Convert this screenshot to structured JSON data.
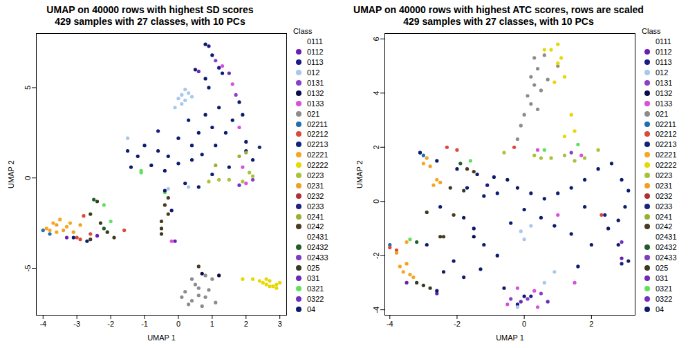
{
  "chart_data": [
    {
      "type": "scatter",
      "title": "UMAP on 40000 rows with highest SD scores",
      "subtitle": "429 samples with 27 classes, with 10 PCs",
      "x_label": "UMAP 1",
      "y_label": "UMAP 2",
      "xlim": [
        -4.2,
        3.2
      ],
      "xticks": [
        -4,
        -3,
        -2,
        -1,
        0,
        1,
        2,
        3
      ],
      "ylim": [
        -7.6,
        8
      ],
      "yticks": [
        -5,
        0,
        5
      ],
      "legend": "right",
      "legend_title": "Class",
      "series": [
        {
          "name": "0111",
          "color": "#ffffff",
          "x": [],
          "y": []
        },
        {
          "name": "0112",
          "color": "#6a1fb0",
          "x": [
            -3.3,
            -2.4,
            -0.1
          ],
          "y": [
            -3.3,
            -3.2,
            -3.5
          ]
        },
        {
          "name": "0113",
          "color": "#1a1a8c",
          "x": [
            0.9,
            1.2,
            2,
            -0.6
          ],
          "y": [
            7.3,
            6.1,
            1.5,
            2.6
          ]
        },
        {
          "name": "012",
          "color": "#a6c8ec",
          "x": [
            0,
            0.1,
            0.2,
            0.3,
            0.1,
            0.4,
            0.2,
            -0.1,
            -1.5,
            -0.3,
            0.3
          ],
          "y": [
            4.4,
            4.6,
            4.3,
            4.7,
            4.1,
            4.5,
            4.9,
            3.9,
            2.2,
            -0.6,
            -0.5
          ]
        },
        {
          "name": "0131",
          "color": "#8a3fc8",
          "x": [
            1.1,
            1.7,
            2.2
          ],
          "y": [
            6.5,
            4.6,
            -0.1
          ]
        },
        {
          "name": "0132",
          "color": "#0b0b4a",
          "x": [
            0.7,
            1.2
          ],
          "y": [
            -5.3,
            -5.4
          ]
        },
        {
          "name": "0133",
          "color": "#d94fd9",
          "x": [
            1.3,
            1.6,
            1.9,
            2,
            -0.2,
            1.8
          ],
          "y": [
            6.2,
            5.2,
            0.6,
            -0.3,
            -3.5,
            2.8
          ]
        },
        {
          "name": "021",
          "color": "#8c8c8c",
          "x": [
            0.2,
            0.4,
            0.6,
            0.8,
            0.3,
            0.5,
            0.7,
            0.9,
            0.1,
            0.6,
            1,
            0.8,
            0.4,
            1.1
          ],
          "y": [
            -6.3,
            -6.8,
            -6.1,
            -6.6,
            -7,
            -5.9,
            -7.1,
            -6.2,
            -6.6,
            -6.5,
            -5.6,
            -5.4,
            -5.6,
            -6.9
          ]
        },
        {
          "name": "02211",
          "color": "#1f6fb0",
          "x": [
            -4,
            -3.8
          ],
          "y": [
            -2.9,
            -3.1
          ]
        },
        {
          "name": "02212",
          "color": "#d94a3a",
          "x": [
            -3,
            -2.9,
            -2.6,
            -1.6,
            -2.8
          ],
          "y": [
            -3.3,
            -3.4,
            -3.1,
            -2.9,
            -2.1
          ]
        },
        {
          "name": "02213",
          "color": "#12237a",
          "x": [],
          "y": []
        },
        {
          "name": "02221",
          "color": "#f5a623",
          "x": [
            -3.9,
            -3.7,
            -3.5,
            -3.3,
            -3.6,
            -3.8,
            -3.2
          ],
          "y": [
            -2.8,
            -2.5,
            -2.3,
            -2.7,
            -3,
            -2.9,
            -2.5
          ]
        },
        {
          "name": "02222",
          "color": "#e6d800",
          "x": [
            2.5,
            2.6,
            2.7,
            2.8,
            2.9,
            3,
            2.7,
            2.4,
            2.9,
            2.2,
            1.9,
            2.6
          ],
          "y": [
            -5.8,
            -5.9,
            -5.7,
            -6,
            -5.9,
            -5.8,
            -6,
            -5.7,
            -6.1,
            -5.6,
            -5.6,
            -5.6
          ]
        },
        {
          "name": "0223",
          "color": "#a8c23a",
          "x": [
            1.5,
            1.9,
            2.1,
            0.9,
            1.2,
            2.2
          ],
          "y": [
            -0.1,
            -0.2,
            0.3,
            -0.2,
            -0.1,
            0.1
          ]
        },
        {
          "name": "0231",
          "color": "#f0a020",
          "x": [
            -3.4,
            -3.1,
            -2.9,
            -3.6
          ],
          "y": [
            -2.9,
            -3,
            -2.6,
            -2.6
          ]
        },
        {
          "name": "0232",
          "color": "#b03030",
          "x": [],
          "y": []
        },
        {
          "name": "0233",
          "color": "#1a237e",
          "x": [
            2.4
          ],
          "y": [
            1.7
          ]
        },
        {
          "name": "0241",
          "color": "#9ab030",
          "x": [
            1.8,
            2,
            1.1
          ],
          "y": [
            1.2,
            1.4,
            0.7
          ]
        },
        {
          "name": "0242",
          "color": "#4a3a20",
          "x": [
            -0.4,
            -0.3,
            -0.5,
            -2.6,
            0.6,
            -0.3
          ],
          "y": [
            -1.5,
            -2,
            -2.4,
            -3.4,
            -4.9,
            -1.1
          ]
        },
        {
          "name": "02431",
          "color": "#ffffff",
          "x": [],
          "y": []
        },
        {
          "name": "02432",
          "color": "#1f5f2a",
          "x": [
            -2.2,
            -2.5
          ],
          "y": [
            -2.8,
            -1.2
          ]
        },
        {
          "name": "02433",
          "color": "#7a3cc0",
          "x": [],
          "y": []
        },
        {
          "name": "025",
          "color": "#3a3a20",
          "x": [
            -2.3,
            -2.1,
            -1.9,
            -2.4,
            -0.5,
            -0.5,
            -2.6
          ],
          "y": [
            -2.5,
            -3,
            -3.3,
            -1.3,
            -2.8,
            -3.1,
            -2
          ]
        },
        {
          "name": "031",
          "color": "#6b2bb5",
          "x": [
            1.5,
            0.6
          ],
          "y": [
            5.8,
            5.9
          ]
        },
        {
          "name": "0321",
          "color": "#5fe05f",
          "x": [
            -1.1,
            -1.1,
            -0.4,
            -2,
            -2.2
          ],
          "y": [
            0.4,
            0.3,
            -0.8,
            -2.4,
            -1.5
          ]
        },
        {
          "name": "0322",
          "color": "#7030c0",
          "x": [
            1.8
          ],
          "y": [
            -0.4
          ]
        },
        {
          "name": "04",
          "color": "#0d1b6e",
          "x": [
            0.5,
            0.8,
            1,
            1.3,
            0.9,
            0.3,
            0.6,
            0.8,
            1,
            1.2,
            0.4,
            0,
            -0.3,
            -0.6,
            -1,
            -1.2,
            -1.5,
            -1.4,
            -0.8,
            -0.4,
            0,
            0.4,
            0.7,
            1.1,
            1.4,
            1.6,
            1.8,
            2,
            1.5,
            1,
            0.6,
            0.2,
            -0.4,
            -0.2,
            2.2,
            1.9,
            0.8,
            -2.7,
            -3.1
          ],
          "y": [
            6,
            5.5,
            6.8,
            5.8,
            5,
            3.2,
            2.5,
            3.5,
            2.8,
            3.9,
            1.8,
            2.2,
            1.2,
            1.5,
            1.8,
            1.2,
            1.5,
            0.6,
            0.7,
            0.4,
            0.8,
            1,
            1.3,
            1.8,
            2.5,
            3.2,
            4.2,
            2,
            0.6,
            0.2,
            -0.5,
            -0.3,
            -0.7,
            -1.8,
            1,
            3.5,
            7.4,
            -3.5,
            -3.3
          ]
        }
      ]
    },
    {
      "type": "scatter",
      "title": "UMAP on 40000 rows with highest ATC scores, rows are scaled",
      "subtitle": "429 samples with 27 classes, with 10 PCs",
      "x_label": "UMAP 1",
      "y_label": "UMAP 2",
      "xlim": [
        -4.15,
        3.3
      ],
      "xticks": [
        -4,
        -2,
        0,
        2
      ],
      "ylim": [
        -4.2,
        6.2
      ],
      "yticks": [
        -4,
        -2,
        0,
        2,
        4,
        6
      ],
      "legend": "right",
      "legend_title": "Class",
      "series": [
        {
          "name": "0111",
          "color": "#ffffff",
          "x": [],
          "y": []
        },
        {
          "name": "0112",
          "color": "#6a1fb0",
          "x": [
            -3.5,
            -2.6,
            2.9
          ],
          "y": [
            -3,
            -3.4,
            -2.1
          ]
        },
        {
          "name": "0113",
          "color": "#1a1a8c",
          "x": [
            -0.2,
            0.2,
            -1.1,
            2.4
          ],
          "y": [
            -3.8,
            -3.5,
            0.6,
            -0.5
          ]
        },
        {
          "name": "012",
          "color": "#a6c8ec",
          "x": [
            0,
            0.2,
            -0.1,
            0.9,
            0.6,
            -0.2
          ],
          "y": [
            -1.4,
            -0.9,
            -1.1,
            -2.6,
            -3,
            -3.9
          ]
        },
        {
          "name": "0131",
          "color": "#8a3fc8",
          "x": [
            -0.4,
            0.1,
            0.5,
            1.4
          ],
          "y": [
            -3.6,
            -3.6,
            -3.4,
            1.8
          ]
        },
        {
          "name": "0132",
          "color": "#0b0b4a",
          "x": [
            -1.5
          ],
          "y": [
            -1.3
          ]
        },
        {
          "name": "0133",
          "color": "#d94fd9",
          "x": [
            -0.5,
            0.4,
            0.3,
            1.5,
            -0.2,
            1,
            0.4,
            1.7
          ],
          "y": [
            -3.8,
            -3.9,
            -3.3,
            -3,
            -3.2,
            -0.5,
            1.9,
            1.7
          ]
        },
        {
          "name": "021",
          "color": "#8c8c8c",
          "x": [
            -0.1,
            0,
            0.2,
            0.1,
            0.3,
            0.4,
            0.3,
            0.6,
            0.2,
            0.5,
            1,
            -0.2,
            0.4,
            0.7
          ],
          "y": [
            2.8,
            3.2,
            3.6,
            3.9,
            4.3,
            4.9,
            5.3,
            5.4,
            4.6,
            4.1,
            5,
            2.3,
            3.4,
            4.5
          ]
        },
        {
          "name": "02211",
          "color": "#1f6fb0",
          "x": [
            -3.1,
            -3,
            -4
          ],
          "y": [
            1.8,
            1.7,
            -1.6
          ]
        },
        {
          "name": "02212",
          "color": "#d94a3a",
          "x": [
            -4,
            -3.8,
            -2.3,
            -2,
            -0.3,
            2.3
          ],
          "y": [
            -1.7,
            -1.8,
            2,
            1.9,
            2,
            -0.5
          ]
        },
        {
          "name": "02213",
          "color": "#12237a",
          "x": [],
          "y": []
        },
        {
          "name": "02221",
          "color": "#f5a623",
          "x": [
            -3.7,
            -3.6,
            -3.4,
            -3.3,
            -3.5,
            -2.7,
            -2.6,
            -3,
            -2.9
          ],
          "y": [
            -2.4,
            -2.6,
            -2.7,
            -2.8,
            -1.5,
            0.6,
            0.8,
            1.4,
            1.6
          ]
        },
        {
          "name": "02222",
          "color": "#e6d800",
          "x": [
            0.8,
            1,
            1,
            0.9,
            1.2,
            0.6,
            1.1,
            1.5,
            1.4,
            1.2
          ],
          "y": [
            5.6,
            5.8,
            5.1,
            4.4,
            4.6,
            5.6,
            5.3,
            2.6,
            3.2,
            2.4
          ]
        },
        {
          "name": "0223",
          "color": "#a8c23a",
          "x": [
            0.3,
            0.5,
            0.8,
            1.2,
            1.5,
            1.8,
            2.2,
            -0.6
          ],
          "y": [
            1.7,
            1.6,
            1.6,
            1.7,
            1.5,
            1.6,
            1.9,
            1.8
          ]
        },
        {
          "name": "0231",
          "color": "#f0a020",
          "x": [
            -3.8,
            -3.5,
            -2.5,
            -2.8
          ],
          "y": [
            -1.9,
            -2.3,
            0.7,
            1.3
          ]
        },
        {
          "name": "0232",
          "color": "#b03030",
          "x": [],
          "y": []
        },
        {
          "name": "0233",
          "color": "#1a237e",
          "x": [
            2.9
          ],
          "y": [
            -2.3
          ]
        },
        {
          "name": "0241",
          "color": "#9ab030",
          "x": [],
          "y": []
        },
        {
          "name": "0242",
          "color": "#4a3a20",
          "x": [
            -1.5,
            -1.7,
            -2.1,
            -2.4
          ],
          "y": [
            1.1,
            1.2,
            -0.5,
            -1.3
          ]
        },
        {
          "name": "02431",
          "color": "#ffffff",
          "x": [],
          "y": []
        },
        {
          "name": "02432",
          "color": "#1f5f2a",
          "x": [
            -3.2,
            -1.9
          ],
          "y": [
            -1.5,
            1.4
          ]
        },
        {
          "name": "02433",
          "color": "#7a3cc0",
          "x": [],
          "y": []
        },
        {
          "name": "025",
          "color": "#3a3a20",
          "x": [
            -3.2,
            -2.8,
            -3,
            -2.2,
            -1.8,
            -2.5,
            -2.9
          ],
          "y": [
            -3,
            -3.2,
            -3.1,
            0.5,
            0.4,
            -1.3,
            -0.4
          ]
        },
        {
          "name": "031",
          "color": "#6b2bb5",
          "x": [
            -0.1,
            0.7
          ],
          "y": [
            -3.7,
            -3.7
          ]
        },
        {
          "name": "0321",
          "color": "#5fe05f",
          "x": [
            -3.4,
            -1.6,
            1.6,
            0.6
          ],
          "y": [
            -1.4,
            1.5,
            2.1,
            1.9
          ]
        },
        {
          "name": "0322",
          "color": "#7030c0",
          "x": [
            2.9
          ],
          "y": [
            -1.5
          ]
        },
        {
          "name": "04",
          "color": "#0d1b6e",
          "x": [
            -3.1,
            -2.6,
            -2,
            -1.4,
            -0.9,
            -0.5,
            -1.7,
            -1.2,
            -0.8,
            -0.2,
            0.2,
            0.6,
            1,
            1.4,
            1.8,
            2.2,
            2.6,
            2.9,
            3.1,
            3,
            2.8,
            2.5,
            2.8,
            3.1,
            -1.8,
            -1.5,
            -1.2,
            -0.8,
            -1.3,
            -1.8,
            -2.1,
            -0.4,
            0,
            0.5,
            0.9,
            1.4,
            1.8,
            2,
            1.6,
            -2.5,
            -2.9,
            -2.4,
            -0.6,
            0,
            -2.6
          ],
          "y": [
            1.8,
            1.5,
            1.2,
            1,
            0.9,
            0.8,
            0.5,
            0.2,
            0.3,
            0.5,
            0.3,
            0.1,
            0.3,
            0.5,
            0.8,
            1.2,
            1.4,
            0.8,
            0.4,
            -0.2,
            -0.7,
            -1,
            -1.6,
            -2.2,
            -0.6,
            -1,
            -1.6,
            -2,
            -2.5,
            -2.8,
            -2.2,
            -0.8,
            -0.3,
            -0.6,
            -0.9,
            -1.2,
            -0.2,
            -1.6,
            -2.4,
            -0.2,
            -1.6,
            -2.6,
            -3.2,
            -3.5,
            -3.3
          ]
        }
      ]
    }
  ]
}
